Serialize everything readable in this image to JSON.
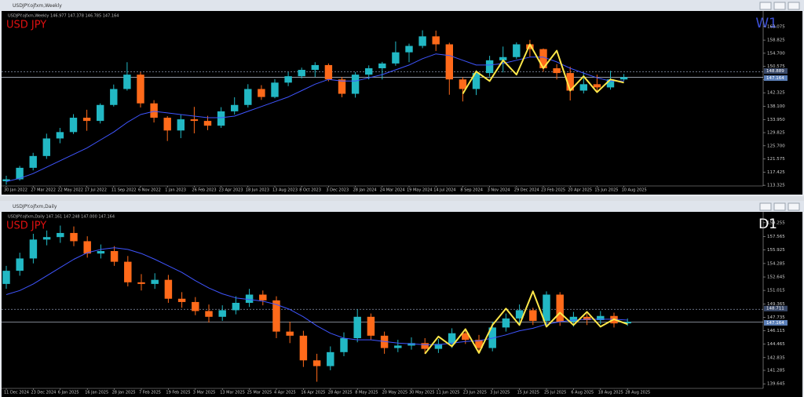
{
  "chart_data": [
    {
      "type": "candlestick",
      "window_title": "USDJPY.ojfxm,Weekly",
      "subtitle": "USDJPY.ojfxm,Weekly 146.977 147.378 146.785 147.164",
      "symbol_label": "USD JPY",
      "symbol_color": "#e01010",
      "timeframe_label": "W1",
      "timeframe_color": "#3b4fd6",
      "categories": [
        "30 Jan 2022",
        null,
        "27 Mar 2022",
        null,
        "22 May 2022",
        null,
        "17 Jul 2022",
        null,
        "11 Sep 2022",
        null,
        "6 Nov 2022",
        null,
        "1 Jan 2023",
        null,
        "26 Feb 2023",
        null,
        "23 Apr 2023",
        null,
        "18 Jun 2023",
        null,
        "13 Aug 2023",
        null,
        "8 Oct 2023",
        null,
        "3 Dec 2023",
        null,
        "28 Jan 2024",
        null,
        "24 Mar 2024",
        null,
        "19 May 2024",
        null,
        "14 Jul 2024",
        null,
        "8 Sep 2024",
        null,
        "3 Nov 2024",
        null,
        "29 Dec 2024",
        null,
        "23 Feb 2025",
        null,
        "20 Apr 2025",
        null,
        "15 Jun 2025",
        null,
        "10 Aug 2025"
      ],
      "open": [
        114.6,
        115.2,
        118.8,
        122.5,
        128.0,
        130.0,
        134.5,
        133.5,
        138.5,
        143.5,
        148.0,
        139.0,
        134.5,
        130.5,
        134.0,
        133.5,
        132.0,
        136.5,
        138.5,
        143.5,
        141.0,
        145.5,
        147.5,
        149.5,
        151.0,
        146.5,
        142.0,
        148.0,
        150.0,
        151.5,
        155.0,
        157.0,
        160.0,
        157.5,
        146.5,
        143.5,
        148.5,
        152.5,
        153.5,
        157.5,
        156.0,
        150.0,
        148.5,
        143.0,
        145.0,
        144.0,
        146.5
      ],
      "high": [
        116.3,
        119.4,
        123.5,
        129.5,
        131.3,
        135.6,
        137.0,
        139.0,
        144.9,
        151.9,
        148.8,
        140.0,
        135.0,
        135.5,
        137.9,
        135.1,
        137.8,
        140.9,
        145.0,
        144.7,
        146.6,
        148.8,
        150.2,
        151.9,
        151.5,
        147.3,
        148.8,
        150.9,
        152.0,
        158.4,
        157.7,
        161.9,
        161.8,
        158.0,
        147.2,
        149.4,
        153.9,
        156.8,
        158.1,
        158.9,
        156.2,
        151.3,
        150.5,
        148.7,
        148.0,
        149.2,
        148.2
      ],
      "low": [
        113.5,
        114.8,
        118.0,
        121.6,
        126.5,
        129.4,
        130.4,
        132.7,
        138.0,
        143.0,
        137.7,
        133.0,
        127.2,
        128.1,
        129.6,
        130.6,
        131.3,
        135.5,
        137.7,
        140.1,
        140.6,
        144.4,
        146.8,
        147.3,
        145.9,
        140.9,
        140.8,
        146.5,
        146.5,
        150.8,
        151.9,
        156.3,
        155.4,
        141.7,
        139.6,
        141.6,
        147.4,
        148.7,
        152.9,
        153.6,
        148.9,
        146.5,
        139.9,
        142.1,
        142.6,
        143.3,
        146.0
      ],
      "close": [
        115.2,
        118.8,
        122.5,
        128.0,
        130.0,
        134.5,
        133.5,
        138.5,
        143.5,
        148.0,
        139.0,
        134.5,
        130.5,
        134.0,
        133.5,
        132.0,
        136.5,
        138.5,
        143.5,
        141.0,
        145.5,
        147.5,
        149.5,
        151.0,
        146.5,
        142.0,
        148.0,
        150.0,
        151.5,
        155.0,
        157.0,
        160.0,
        157.5,
        146.5,
        143.5,
        148.5,
        152.5,
        153.5,
        157.5,
        156.0,
        150.0,
        148.5,
        143.0,
        145.0,
        144.0,
        146.5,
        147.2
      ],
      "up_color": "#22b8c4",
      "down_color": "#ff6a1a",
      "ma": {
        "color": "#3f55ff",
        "values": [
          114.5,
          115.5,
          117,
          119,
          121,
          123,
          125,
          127.5,
          130,
          133,
          135.5,
          136.5,
          136,
          135.5,
          135,
          134.5,
          134.5,
          135,
          136.5,
          138,
          139.5,
          141,
          143,
          145,
          146.5,
          146,
          146,
          147,
          148,
          149.5,
          151,
          153,
          154.5,
          154,
          152.5,
          151,
          151,
          151.5,
          152.5,
          153.5,
          153.5,
          152,
          150,
          148.5,
          147,
          146,
          146
        ]
      },
      "zigzag": {
        "color": "#ffe84a",
        "values": [
          null,
          null,
          null,
          null,
          null,
          null,
          null,
          null,
          null,
          null,
          null,
          null,
          null,
          null,
          null,
          null,
          null,
          null,
          null,
          null,
          null,
          null,
          null,
          null,
          null,
          null,
          null,
          null,
          null,
          null,
          null,
          null,
          null,
          null,
          142.0,
          149.0,
          146.0,
          152.5,
          148.0,
          157.5,
          150.0,
          155.5,
          143.0,
          147.5,
          142.5,
          146.5,
          145.5
        ]
      },
      "hlines": [
        148.889,
        147.164
      ],
      "ylim": [
        112.5,
        165
      ],
      "yticks": [
        113.325,
        117.425,
        121.575,
        {
          "value": 125.7,
          "label": "125.700"
        },
        129.825,
        {
          "value": 133.95,
          "label": "133.950"
        },
        {
          "value": 138.1,
          "label": "138.100"
        },
        142.325,
        {
          "value": 146.45,
          "label": "146.450"
        },
        150.575,
        {
          "value": 154.7,
          "label": "154.700"
        },
        158.825,
        163.075
      ]
    },
    {
      "type": "candlestick",
      "window_title": "USDJPY.ojfxm,Daily",
      "subtitle": "USDJPY.ojfxm,Daily 147.161 147.248 147.000 147.164",
      "symbol_label": "USD JPY",
      "symbol_color": "#e01010",
      "timeframe_label": "D1",
      "timeframe_color": "#ffffff",
      "categories": [
        "11 Dec 2024",
        null,
        "23 Dec 2024",
        null,
        "6 Jan 2025",
        null,
        "16 Jan 2025",
        null,
        "28 Jan 2025",
        null,
        "7 Feb 2025",
        null,
        "19 Feb 2025",
        null,
        "3 Mar 2025",
        null,
        "13 Mar 2025",
        null,
        "25 Mar 2025",
        null,
        "4 Apr 2025",
        null,
        "16 Apr 2025",
        null,
        "28 Apr 2025",
        null,
        "8 May 2025",
        null,
        "20 May 2025",
        null,
        "30 May 2025",
        null,
        "11 Jun 2025",
        null,
        "23 Jun 2025",
        null,
        "3 Jul 2025",
        null,
        "15 Jul 2025",
        null,
        "25 Jul 2025",
        null,
        "6 Aug 2025",
        null,
        "18 Aug 2025",
        null,
        "28 Aug 2025"
      ],
      "open": [
        151.8,
        153.4,
        154.9,
        157.2,
        157.5,
        158.0,
        157.0,
        155.5,
        155.8,
        154.5,
        152.0,
        151.8,
        152.3,
        150.0,
        149.6,
        148.5,
        147.8,
        148.6,
        149.5,
        150.5,
        149.8,
        146.0,
        145.5,
        142.5,
        141.8,
        143.5,
        145.2,
        147.8,
        145.5,
        144.0,
        144.3,
        144.6,
        143.9,
        144.5,
        145.8,
        145.0,
        144.0,
        146.5,
        147.6,
        148.6,
        147.3,
        150.5,
        147.2,
        147.8,
        147.4,
        147.9,
        147.0
      ],
      "high": [
        154.0,
        155.6,
        157.9,
        158.3,
        158.9,
        158.8,
        157.6,
        156.6,
        156.4,
        155.2,
        153.0,
        153.1,
        152.9,
        150.8,
        150.2,
        149.3,
        149.2,
        150.3,
        151.2,
        151.0,
        150.3,
        147.2,
        146.1,
        143.3,
        144.2,
        145.9,
        148.7,
        148.2,
        146.0,
        145.0,
        145.3,
        145.2,
        145.1,
        146.4,
        146.4,
        145.6,
        147.2,
        148.2,
        149.3,
        148.9,
        150.9,
        150.8,
        148.4,
        148.2,
        148.5,
        148.3,
        147.6
      ],
      "low": [
        151.2,
        152.8,
        154.3,
        156.5,
        156.8,
        156.4,
        155.0,
        154.9,
        154.0,
        151.5,
        151.0,
        151.2,
        149.5,
        148.9,
        148.0,
        147.1,
        147.3,
        148.1,
        149.0,
        149.2,
        145.2,
        144.6,
        141.7,
        139.9,
        141.3,
        143.0,
        144.7,
        145.0,
        143.3,
        143.5,
        143.8,
        143.3,
        143.4,
        144.0,
        144.5,
        143.4,
        143.6,
        146.0,
        147.0,
        146.8,
        146.9,
        146.7,
        146.6,
        146.8,
        146.9,
        146.5,
        146.7
      ],
      "close": [
        153.4,
        154.9,
        157.2,
        157.5,
        158.0,
        157.0,
        155.5,
        155.8,
        154.5,
        152.0,
        151.8,
        152.3,
        150.0,
        149.6,
        148.5,
        147.8,
        148.6,
        149.5,
        150.5,
        149.8,
        146.0,
        145.5,
        142.5,
        141.8,
        143.5,
        145.2,
        147.8,
        145.5,
        144.0,
        144.3,
        144.6,
        143.9,
        144.5,
        145.8,
        145.0,
        144.0,
        146.5,
        147.6,
        148.6,
        147.3,
        150.5,
        147.2,
        147.8,
        147.4,
        147.9,
        147.0,
        147.2
      ],
      "up_color": "#22b8c4",
      "down_color": "#ff6a1a",
      "ma": {
        "color": "#3f55ff",
        "values": [
          150.5,
          151.0,
          151.8,
          152.8,
          153.8,
          154.8,
          155.6,
          156.0,
          156.2,
          156.0,
          155.5,
          154.8,
          154.0,
          153.2,
          152.2,
          151.3,
          150.6,
          150.1,
          149.9,
          149.7,
          149.3,
          148.7,
          147.8,
          146.7,
          145.8,
          145.2,
          145.0,
          145.0,
          144.8,
          144.6,
          144.5,
          144.4,
          144.4,
          144.6,
          144.8,
          144.9,
          145.2,
          145.6,
          146.1,
          146.4,
          146.9,
          147.2,
          147.4,
          147.5,
          147.5,
          147.5,
          147.4
        ]
      },
      "zigzag": {
        "color": "#ffe84a",
        "values": [
          null,
          null,
          null,
          null,
          null,
          null,
          null,
          null,
          null,
          null,
          null,
          null,
          null,
          null,
          null,
          null,
          null,
          null,
          null,
          null,
          null,
          null,
          null,
          null,
          null,
          null,
          null,
          null,
          null,
          null,
          null,
          143.3,
          145.4,
          144.2,
          146.3,
          143.4,
          146.8,
          148.8,
          146.8,
          150.9,
          146.6,
          148.3,
          146.8,
          148.4,
          146.6,
          147.5,
          146.9
        ]
      },
      "hlines": [
        148.711,
        147.164
      ],
      "ylim": [
        138.9,
        160
      ],
      "yticks": [
        139.645,
        141.285,
        142.835,
        144.465,
        146.115,
        147.735,
        149.365,
        151.015,
        152.645,
        154.285,
        155.925,
        157.565,
        159.255
      ]
    }
  ]
}
